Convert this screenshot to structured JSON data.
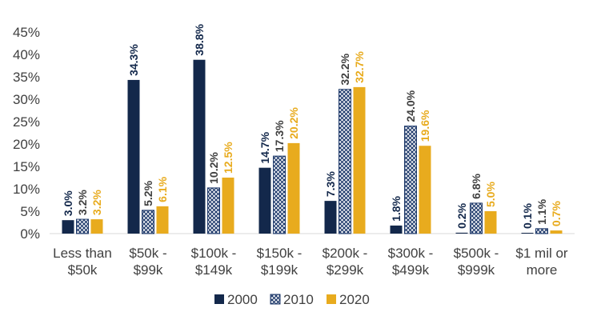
{
  "chart_data": {
    "type": "bar",
    "title": "",
    "xlabel": "",
    "ylabel": "",
    "ylim": [
      0,
      45
    ],
    "yticks": [
      "0%",
      "5%",
      "10%",
      "15%",
      "20%",
      "25%",
      "30%",
      "35%",
      "40%",
      "45%"
    ],
    "grid": false,
    "legend_position": "bottom",
    "categories": [
      [
        "Less than",
        "$50k"
      ],
      [
        "$50k -",
        "$99k"
      ],
      [
        "$100k -",
        "$149k"
      ],
      [
        "$150k -",
        "$199k"
      ],
      [
        "$200k -",
        "$299k"
      ],
      [
        "$300k -",
        "$499k"
      ],
      [
        "$500k -",
        "$999k"
      ],
      [
        "$1 mil or",
        "more"
      ]
    ],
    "series": [
      {
        "name": "2000",
        "color": "#13284b",
        "pattern": "solid",
        "values": [
          3.0,
          34.3,
          38.8,
          14.7,
          7.3,
          1.8,
          0.2,
          0.1
        ],
        "labels": [
          "3.0%",
          "34.3%",
          "38.8%",
          "14.7%",
          "7.3%",
          "1.8%",
          "0.2%",
          "0.1%"
        ],
        "label_color": "#13284b"
      },
      {
        "name": "2010",
        "color": "#1f3a6b",
        "pattern": "crosshatch",
        "values": [
          3.2,
          5.2,
          10.2,
          17.3,
          32.2,
          24.0,
          6.8,
          1.1
        ],
        "labels": [
          "3.2%",
          "5.2%",
          "10.2%",
          "17.3%",
          "32.2%",
          "24.0%",
          "6.8%",
          "1.1%"
        ],
        "label_color": "#404040"
      },
      {
        "name": "2020",
        "color": "#e8ab1e",
        "pattern": "solid",
        "values": [
          3.2,
          6.1,
          12.5,
          20.2,
          32.7,
          19.6,
          5.0,
          0.7
        ],
        "labels": [
          "3.2%",
          "6.1%",
          "12.5%",
          "20.2%",
          "32.7%",
          "19.6%",
          "5.0%",
          "0.7%"
        ],
        "label_color": "#e8ab1e"
      }
    ]
  }
}
